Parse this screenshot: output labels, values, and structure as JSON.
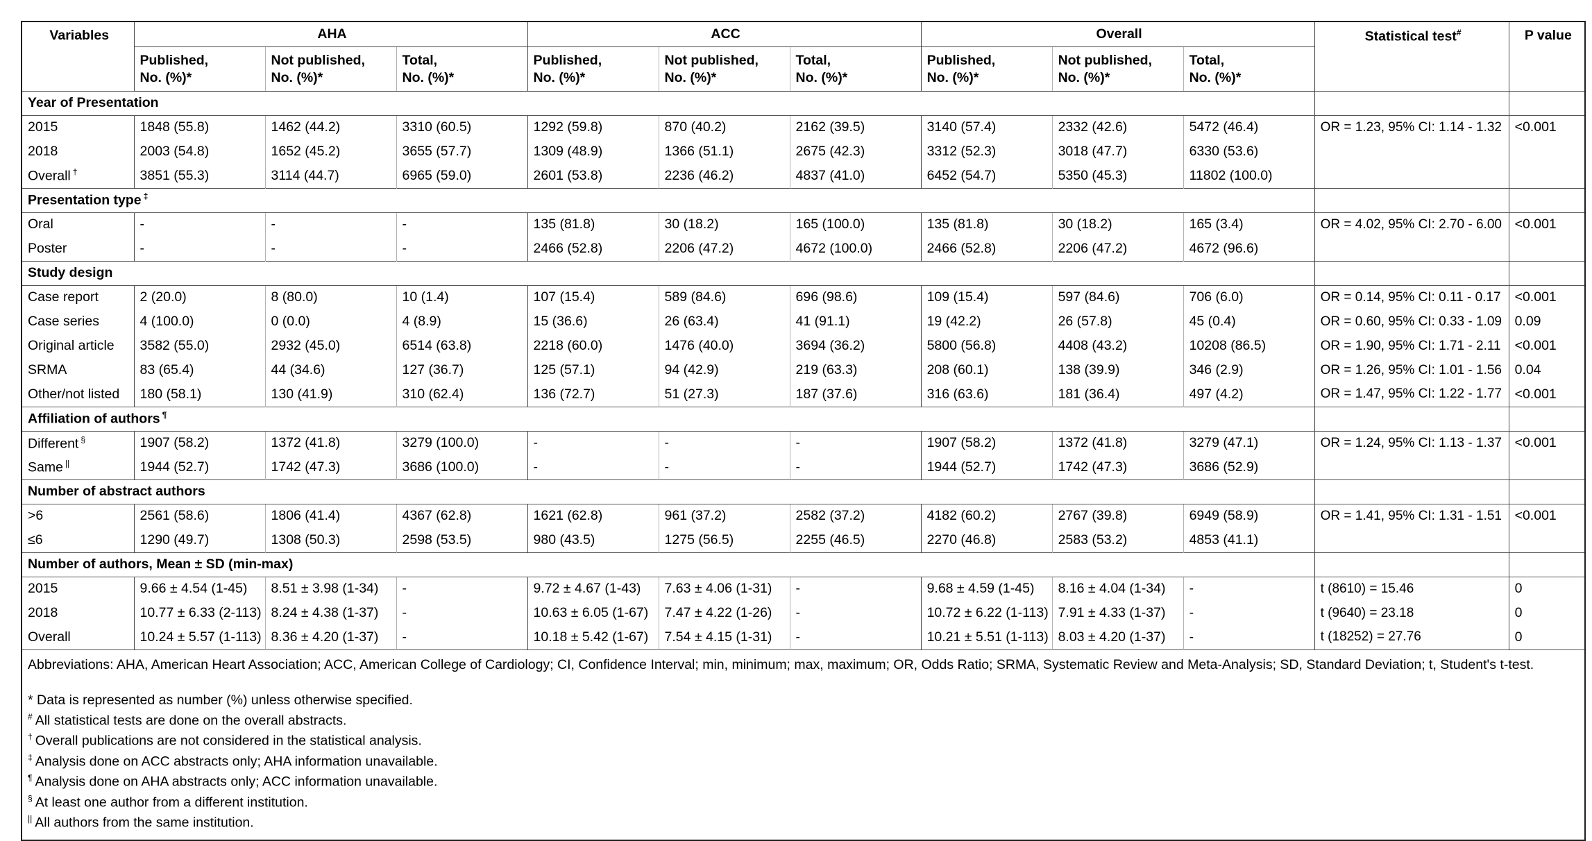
{
  "table": {
    "header": {
      "variables": "Variables",
      "groups": [
        "AHA",
        "ACC",
        "Overall"
      ],
      "sub": {
        "published": {
          "line1": "Published,",
          "line2": "No. (%)*"
        },
        "not_published": {
          "line1": "Not published,",
          "line2": "No. (%)*"
        },
        "total": {
          "line1": "Total,",
          "line2": "No. (%)*"
        }
      },
      "stat_test": {
        "label": "Statistical test",
        "sup": "#"
      },
      "p_value": "P value"
    },
    "sections": [
      {
        "title": "Year of Presentation",
        "sup": "",
        "rows": [
          {
            "label": "2015",
            "sup": "",
            "cells": [
              "1848 (55.8)",
              "1462 (44.2)",
              "3310 (60.5)",
              "1292 (59.8)",
              "870 (40.2)",
              "2162 (39.5)",
              "3140 (57.4)",
              "2332 (42.6)",
              "5472 (46.4)"
            ],
            "stat": "OR = 1.23, 95% CI: 1.14 - 1.32",
            "p": "<0.001"
          },
          {
            "label": "2018",
            "sup": "",
            "cells": [
              "2003 (54.8)",
              "1652 (45.2)",
              "3655 (57.7)",
              "1309 (48.9)",
              "1366 (51.1)",
              "2675 (42.3)",
              "3312 (52.3)",
              "3018 (47.7)",
              "6330 (53.6)"
            ],
            "stat": "",
            "p": ""
          },
          {
            "label": "Overall",
            "sup": "†",
            "cells": [
              "3851 (55.3)",
              "3114 (44.7)",
              "6965 (59.0)",
              "2601 (53.8)",
              "2236 (46.2)",
              "4837 (41.0)",
              "6452 (54.7)",
              "5350 (45.3)",
              "11802 (100.0)"
            ],
            "stat": "",
            "p": ""
          }
        ]
      },
      {
        "title": "Presentation type",
        "sup": "‡",
        "rows": [
          {
            "label": "Oral",
            "sup": "",
            "cells": [
              "-",
              "-",
              "-",
              "135 (81.8)",
              "30 (18.2)",
              "165 (100.0)",
              "135 (81.8)",
              "30 (18.2)",
              "165 (3.4)"
            ],
            "stat": "OR = 4.02, 95% CI: 2.70 - 6.00",
            "p": "<0.001"
          },
          {
            "label": "Poster",
            "sup": "",
            "cells": [
              "-",
              "-",
              "-",
              "2466 (52.8)",
              "2206 (47.2)",
              "4672 (100.0)",
              "2466 (52.8)",
              "2206 (47.2)",
              "4672 (96.6)"
            ],
            "stat": "",
            "p": ""
          }
        ]
      },
      {
        "title": "Study design",
        "sup": "",
        "rows": [
          {
            "label": "Case report",
            "sup": "",
            "cells": [
              "2 (20.0)",
              "8 (80.0)",
              "10 (1.4)",
              "107 (15.4)",
              "589 (84.6)",
              "696 (98.6)",
              "109 (15.4)",
              "597 (84.6)",
              "706 (6.0)"
            ],
            "stat": "OR = 0.14, 95% CI: 0.11 - 0.17",
            "p": "<0.001"
          },
          {
            "label": "Case series",
            "sup": "",
            "cells": [
              "4 (100.0)",
              "0 (0.0)",
              "4 (8.9)",
              "15 (36.6)",
              "26 (63.4)",
              "41 (91.1)",
              "19 (42.2)",
              "26 (57.8)",
              "45 (0.4)"
            ],
            "stat": "OR = 0.60, 95% CI: 0.33 - 1.09",
            "p": "0.09"
          },
          {
            "label": "Original article",
            "sup": "",
            "cells": [
              "3582 (55.0)",
              "2932 (45.0)",
              "6514 (63.8)",
              "2218 (60.0)",
              "1476 (40.0)",
              "3694 (36.2)",
              "5800 (56.8)",
              "4408 (43.2)",
              "10208 (86.5)"
            ],
            "stat": "OR = 1.90, 95% CI: 1.71 - 2.11",
            "p": "<0.001"
          },
          {
            "label": "SRMA",
            "sup": "",
            "cells": [
              "83 (65.4)",
              "44 (34.6)",
              "127 (36.7)",
              "125 (57.1)",
              "94 (42.9)",
              "219 (63.3)",
              "208 (60.1)",
              "138 (39.9)",
              "346 (2.9)"
            ],
            "stat": "OR = 1.26, 95% CI: 1.01 - 1.56",
            "p": "0.04"
          },
          {
            "label": "Other/not listed",
            "sup": "",
            "cells": [
              "180 (58.1)",
              "130 (41.9)",
              "310 (62.4)",
              "136 (72.7)",
              "51 (27.3)",
              "187 (37.6)",
              "316 (63.6)",
              "181 (36.4)",
              "497 (4.2)"
            ],
            "stat": "OR = 1.47, 95% CI: 1.22 - 1.77",
            "p": "<0.001"
          }
        ]
      },
      {
        "title": "Affiliation of authors",
        "sup": "¶",
        "rows": [
          {
            "label": "Different",
            "sup": "§",
            "cells": [
              "1907 (58.2)",
              "1372 (41.8)",
              "3279 (100.0)",
              "-",
              "-",
              "-",
              "1907 (58.2)",
              "1372 (41.8)",
              "3279 (47.1)"
            ],
            "stat": "OR = 1.24, 95% CI: 1.13 - 1.37",
            "p": "<0.001"
          },
          {
            "label": "Same",
            "sup": "||",
            "cells": [
              "1944 (52.7)",
              "1742 (47.3)",
              "3686 (100.0)",
              "-",
              "-",
              "-",
              "1944 (52.7)",
              "1742 (47.3)",
              "3686 (52.9)"
            ],
            "stat": "",
            "p": ""
          }
        ]
      },
      {
        "title": "Number of abstract authors",
        "sup": "",
        "rows": [
          {
            "label": ">6",
            "sup": "",
            "cells": [
              "2561 (58.6)",
              "1806 (41.4)",
              "4367 (62.8)",
              "1621 (62.8)",
              "961 (37.2)",
              "2582 (37.2)",
              "4182 (60.2)",
              "2767 (39.8)",
              "6949 (58.9)"
            ],
            "stat": "OR = 1.41, 95% CI: 1.31 - 1.51",
            "p": "<0.001"
          },
          {
            "label": "≤6",
            "sup": "",
            "cells": [
              "1290 (49.7)",
              "1308 (50.3)",
              "2598 (53.5)",
              "980 (43.5)",
              "1275 (56.5)",
              "2255 (46.5)",
              "2270 (46.8)",
              "2583 (53.2)",
              "4853 (41.1)"
            ],
            "stat": "",
            "p": ""
          }
        ]
      },
      {
        "title": "Number of authors, Mean ± SD (min-max)",
        "sup": "",
        "rows": [
          {
            "label": "2015",
            "sup": "",
            "cells": [
              "9.66 ± 4.54 (1-45)",
              "8.51 ± 3.98 (1-34)",
              "-",
              "9.72 ± 4.67 (1-43)",
              "7.63 ± 4.06 (1-31)",
              "-",
              "9.68 ± 4.59 (1-45)",
              "8.16 ± 4.04 (1-34)",
              "-"
            ],
            "stat": "t (8610) = 15.46",
            "p": "0"
          },
          {
            "label": "2018",
            "sup": "",
            "cells": [
              "10.77 ± 6.33 (2-113)",
              "8.24 ± 4.38 (1-37)",
              "-",
              "10.63 ± 6.05 (1-67)",
              "7.47 ± 4.22 (1-26)",
              "-",
              "10.72 ± 6.22 (1-113)",
              "7.91 ± 4.33 (1-37)",
              "-"
            ],
            "stat": "t (9640) = 23.18",
            "p": "0"
          },
          {
            "label": "Overall",
            "sup": "",
            "cells": [
              "10.24 ± 5.57 (1-113)",
              "8.36 ± 4.20 (1-37)",
              "-",
              "10.18 ± 5.42 (1-67)",
              "7.54 ± 4.15 (1-31)",
              "-",
              "10.21 ± 5.51 (1-113)",
              "8.03 ± 4.20 (1-37)",
              "-"
            ],
            "stat": "t (18252) = 27.76",
            "p": "0"
          }
        ]
      }
    ],
    "footnotes": {
      "abbreviations": "Abbreviations: AHA, American Heart Association; ACC, American College of Cardiology; CI, Confidence Interval; min, minimum; max, maximum; OR, Odds Ratio; SRMA, Systematic Review and Meta-Analysis; SD, Standard Deviation; t, Student's t-test.",
      "notes": [
        {
          "marker": "*",
          "sup": false,
          "text": "Data is represented as number (%) unless otherwise specified."
        },
        {
          "marker": "#",
          "sup": true,
          "text": "All statistical tests are done on the overall abstracts."
        },
        {
          "marker": "†",
          "sup": true,
          "text": "Overall publications are not considered in the statistical analysis."
        },
        {
          "marker": "‡",
          "sup": true,
          "text": "Analysis done on ACC abstracts only; AHA information unavailable."
        },
        {
          "marker": "¶",
          "sup": true,
          "text": "Analysis done on AHA abstracts only; ACC information unavailable."
        },
        {
          "marker": "§",
          "sup": true,
          "text": "At least one author from a different institution."
        },
        {
          "marker": "||",
          "sup": true,
          "text": "All authors from the same institution."
        }
      ]
    }
  }
}
